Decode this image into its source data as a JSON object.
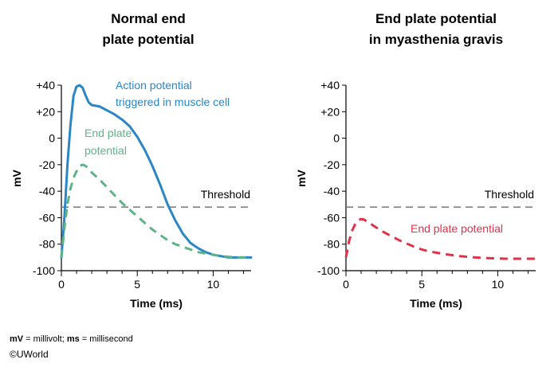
{
  "chart_data": [
    {
      "type": "line",
      "title": [
        "Normal end",
        "plate potential"
      ],
      "xlabel": "Time (ms)",
      "ylabel": "mV",
      "xlim": [
        0,
        12.5
      ],
      "ylim": [
        -100,
        40
      ],
      "xticks": [
        0,
        5,
        10
      ],
      "yticks": [
        -100,
        -80,
        -60,
        -40,
        -20,
        0,
        20,
        40
      ],
      "ytick_labels": [
        "-100",
        "-80",
        "-60",
        "-40",
        "-20",
        "0",
        "+20",
        "+40"
      ],
      "threshold": {
        "value": -52,
        "label": "Threshold"
      },
      "series": [
        {
          "name": "Action potential triggered in muscle cell",
          "label_lines": [
            "Action potential",
            "triggered in muscle cell"
          ],
          "color": "#2a86c4",
          "style": "solid",
          "x": [
            0,
            0.2,
            0.4,
            0.6,
            0.8,
            1.0,
            1.2,
            1.4,
            1.6,
            1.8,
            2.0,
            2.5,
            3.0,
            3.5,
            4.0,
            4.5,
            5.0,
            5.5,
            6.0,
            6.5,
            7.0,
            7.5,
            8.0,
            8.5,
            9.0,
            9.5,
            10.0,
            10.5,
            11.0,
            11.5,
            12.0,
            12.5
          ],
          "y": [
            -90,
            -60,
            -20,
            10,
            32,
            39,
            40,
            38,
            32,
            27,
            25,
            24,
            21,
            18,
            14,
            9,
            1,
            -9,
            -21,
            -35,
            -50,
            -62,
            -72,
            -79,
            -83,
            -86,
            -88,
            -89,
            -90,
            -90,
            -90,
            -90
          ]
        },
        {
          "name": "End plate potential",
          "label_lines": [
            "End plate",
            "potential"
          ],
          "color": "#5fb38a",
          "style": "dashed",
          "x": [
            0,
            0.2,
            0.4,
            0.6,
            0.8,
            1.0,
            1.2,
            1.4,
            1.6,
            1.8,
            2.0,
            2.5,
            3.0,
            3.5,
            4.0,
            4.5,
            5.0,
            5.5,
            6.0,
            6.5,
            7.0,
            7.5,
            8.0,
            8.5,
            9.0,
            9.5,
            10.0,
            10.5,
            11.0,
            11.5,
            12.0,
            12.5
          ],
          "y": [
            -90,
            -68,
            -50,
            -38,
            -30,
            -25,
            -21,
            -20,
            -21,
            -23,
            -26,
            -31,
            -37,
            -43,
            -49,
            -54,
            -59,
            -64,
            -69,
            -73,
            -77,
            -80,
            -82,
            -84,
            -86,
            -87,
            -88,
            -89,
            -89.5,
            -90,
            -90,
            -90
          ]
        }
      ]
    },
    {
      "type": "line",
      "title": [
        "End plate potential",
        "in myasthenia gravis"
      ],
      "xlabel": "Time (ms)",
      "ylabel": "mV",
      "xlim": [
        0,
        12.5
      ],
      "ylim": [
        -100,
        40
      ],
      "xticks": [
        0,
        5,
        10
      ],
      "yticks": [
        -100,
        -80,
        -60,
        -40,
        -20,
        0,
        20,
        40
      ],
      "ytick_labels": [
        "-100",
        "-80",
        "-60",
        "-40",
        "-20",
        "0",
        "+20",
        "+40"
      ],
      "threshold": {
        "value": -52,
        "label": "Threshold"
      },
      "series": [
        {
          "name": "End plate potential",
          "label_lines": [
            "End plate potential"
          ],
          "color": "#e0334a",
          "style": "dashed",
          "x": [
            0,
            0.2,
            0.4,
            0.6,
            0.8,
            1.0,
            1.2,
            1.4,
            1.6,
            1.8,
            2.0,
            2.5,
            3.0,
            3.5,
            4.0,
            4.5,
            5.0,
            5.5,
            6.0,
            6.5,
            7.0,
            7.5,
            8.0,
            8.5,
            9.0,
            9.5,
            10.0,
            10.5,
            11.0,
            11.5,
            12.0,
            12.5
          ],
          "y": [
            -90,
            -78,
            -70,
            -65,
            -62,
            -61,
            -61.5,
            -63,
            -64.5,
            -66,
            -67.5,
            -71,
            -74,
            -77,
            -79.5,
            -82,
            -84,
            -85.5,
            -86.5,
            -87.5,
            -88.3,
            -89,
            -89.5,
            -90,
            -90.3,
            -90.6,
            -90.8,
            -91,
            -91,
            -91,
            -91,
            -91
          ]
        }
      ]
    }
  ],
  "footnote": {
    "mv_abbr": "mV",
    "mv_def": " = millivolt; ",
    "ms_abbr": "ms",
    "ms_def": " = millisecond"
  },
  "copyright": {
    "symbol": "©",
    "text": "UWorld"
  }
}
